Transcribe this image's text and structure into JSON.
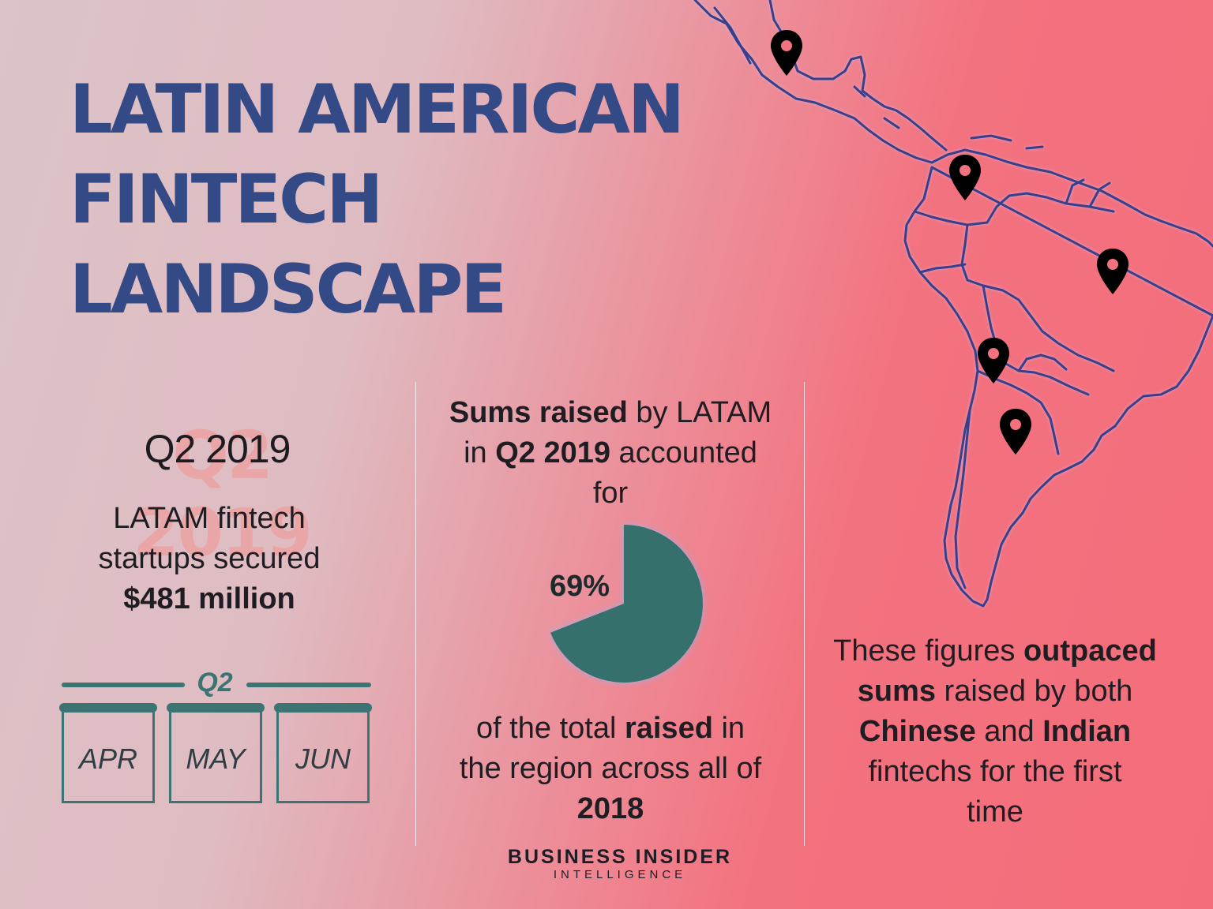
{
  "title": {
    "line1": "LATIN AMERICAN",
    "line2": "FINTECH",
    "line3": "LANDSCAPE"
  },
  "left": {
    "ghost": "Q2 2019",
    "quarter": "Q2 2019",
    "desc1": "LATAM fintech",
    "desc2": "startups secured",
    "amount": "$481 million",
    "calendar": {
      "quarter_label": "Q2",
      "months": [
        "APR",
        "MAY",
        "JUN"
      ]
    }
  },
  "middle": {
    "top_bold1": "Sums raised",
    "top_text1": " by LATAM",
    "top_text2": "in ",
    "top_bold2": "Q2 2019",
    "top_text3": " accounted",
    "top_text4": "for",
    "pie_value": 69,
    "pie_label": "69%",
    "bottom_text1": "of the total ",
    "bottom_bold1": "raised",
    "bottom_text2": " in",
    "bottom_text3": "the region across all of",
    "bottom_bold2": "2018"
  },
  "right": {
    "t1": "These figures ",
    "b1": "outpaced",
    "b2": "sums",
    "t2": " raised by both",
    "b3": "Chinese",
    "t3": " and ",
    "b4": "Indian",
    "t4": "fintechs for the first",
    "t5": "time"
  },
  "brand": {
    "line1": "BUSINESS INSIDER",
    "line2": "INTELLIGENCE"
  },
  "colors": {
    "title": "#344a86",
    "teal": "#3b7473",
    "pie": "#35706d",
    "map_line": "#3a3f8a",
    "pin": "#000000"
  },
  "map": {
    "pins": [
      "mexico-pin",
      "colombia-pin",
      "brazil-pin",
      "chile-pin",
      "argentina-pin"
    ]
  }
}
